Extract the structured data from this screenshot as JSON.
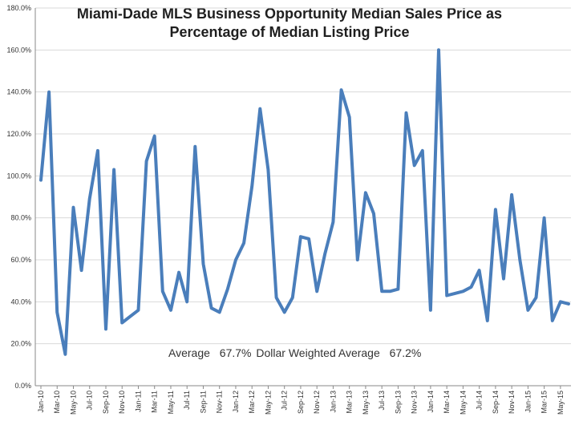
{
  "chart_data": {
    "type": "line",
    "title_line1": "Miami-Dade MLS Business Opportunity Median Sales Price as",
    "title_line2": "Percentage of Median Listing Price",
    "xlabel": "",
    "ylabel": "",
    "ylim": [
      0,
      180
    ],
    "y_ticks": [
      "0.0%",
      "20.0%",
      "40.0%",
      "60.0%",
      "80.0%",
      "100.0%",
      "120.0%",
      "140.0%",
      "160.0%",
      "180.0%"
    ],
    "x_tick_labels": [
      "Jan-10",
      "Mar-10",
      "May-10",
      "Jul-10",
      "Sep-10",
      "Nov-10",
      "Jan-11",
      "Mar-11",
      "May-11",
      "Jul-11",
      "Sep-11",
      "Nov-11",
      "Jan-12",
      "Mar-12",
      "May-12",
      "Jul-12",
      "Sep-12",
      "Nov-12",
      "Jan-13",
      "Mar-13",
      "May-13",
      "Jul-13",
      "Sep-13",
      "Nov-13",
      "Jan-14",
      "Mar-14",
      "May-14",
      "Jul-14",
      "Sep-14",
      "Nov-14",
      "Jan-15",
      "Mar-15",
      "May-15"
    ],
    "grid": "horizontal",
    "line_color": "#4a7ebb",
    "series": [
      {
        "values": [
          98,
          140,
          35,
          15,
          85,
          55,
          89,
          112,
          27,
          103,
          30,
          33,
          36,
          107,
          119,
          45,
          36,
          54,
          40,
          114,
          58,
          37,
          35,
          46,
          60,
          68,
          95,
          132,
          103,
          42,
          35,
          42,
          71,
          70,
          45,
          63,
          78,
          141,
          128,
          60,
          92,
          82,
          45,
          45,
          46,
          130,
          105,
          112,
          36,
          160,
          43,
          44,
          45,
          47,
          55,
          31,
          84,
          51,
          91,
          60,
          36,
          42,
          80,
          31,
          40,
          39
        ]
      }
    ],
    "annotation": {
      "average_label": "Average",
      "average_value": "67.7%",
      "weighted_label": "Dollar Weighted Average",
      "weighted_value": "67.2%"
    }
  }
}
